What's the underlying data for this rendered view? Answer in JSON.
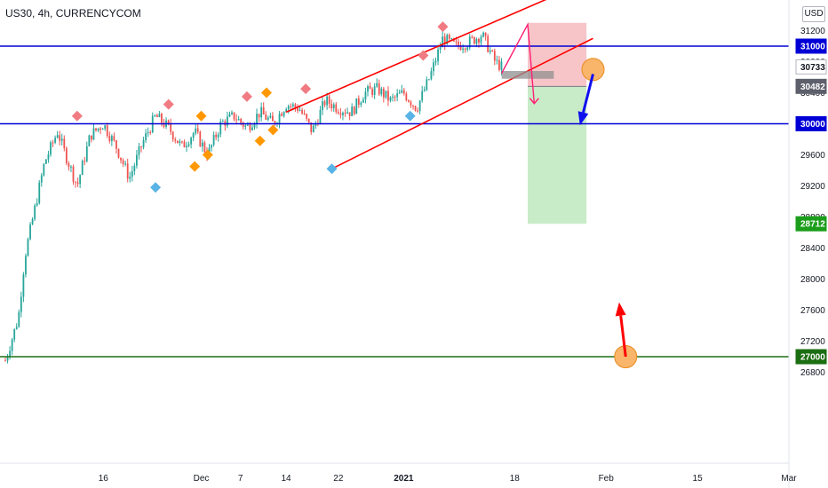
{
  "header": {
    "symbol": "US30, 4h, CURRENCYCOM",
    "currency": "USD"
  },
  "colors": {
    "up": "#26a69a",
    "down": "#ef5350",
    "resistance": "#0000d6",
    "support": "#1b6e12",
    "channel": "#ff0000",
    "forecast": "#ff1e74",
    "sl_zone": "#f7c5c8",
    "tp_zone": "#c8ebc8",
    "marker_red": "#f07b82",
    "marker_orange": "#ff9800",
    "marker_blue": "#5ab3e6",
    "circle": "#f9b56a",
    "circle_edge": "#e88b1e",
    "arrow_blue": "#1010ee",
    "arrow_red": "#ff0000"
  },
  "chart_data": {
    "type": "line",
    "title": "US30, 4h, CURRENCYCOM",
    "y_axis": {
      "ylim": [
        26600,
        31400
      ],
      "ticks": [
        26800,
        27200,
        27600,
        28000,
        28400,
        28800,
        29200,
        29600,
        30000,
        30400,
        30800,
        31200
      ],
      "position": "right"
    },
    "x_axis": {
      "tick_labels": [
        "16",
        "Dec",
        "7",
        "14",
        "22",
        "2021",
        "18",
        "Feb",
        "15",
        "Mar"
      ],
      "bold_labels": [
        "2021"
      ]
    },
    "price_series": {
      "name": "US30",
      "x": [
        "Nov 01",
        "Nov 03",
        "Nov 04",
        "Nov 05",
        "Nov 07",
        "Nov 09",
        "Nov 10",
        "Nov 12",
        "Nov 14",
        "Nov 16",
        "Nov 18",
        "Nov 20",
        "Nov 22",
        "Nov 24",
        "Nov 26",
        "Nov 28",
        "Nov 30",
        "Dec 02",
        "Dec 04",
        "Dec 06",
        "Dec 08",
        "Dec 10",
        "Dec 12",
        "Dec 14",
        "Dec 16",
        "Dec 18",
        "Dec 20",
        "Dec 22",
        "Dec 24",
        "Dec 26",
        "Dec 28",
        "Dec 30",
        "Jan 01",
        "Jan 03",
        "Jan 05",
        "Jan 07",
        "Jan 09",
        "Jan 11",
        "Jan 13",
        "Jan 15",
        "Jan 16"
      ],
      "values": [
        26950,
        27500,
        28300,
        28700,
        29500,
        29900,
        29650,
        29200,
        29850,
        30000,
        29700,
        29300,
        29750,
        30100,
        29950,
        29700,
        29900,
        29600,
        30000,
        30100,
        29950,
        30150,
        30000,
        30250,
        30200,
        29900,
        30300,
        30200,
        30150,
        30400,
        30450,
        30300,
        30400,
        30200,
        30600,
        31100,
        31000,
        31050,
        31150,
        30800,
        30733
      ]
    },
    "horizontal_levels": [
      {
        "value": 31000,
        "label": "31000",
        "color_key": "resistance"
      },
      {
        "value": 30000,
        "label": "30000",
        "color_key": "resistance"
      },
      {
        "value": 27000,
        "label": "27000",
        "color_key": "support"
      }
    ],
    "price_tags": [
      {
        "value": 30733,
        "label": "30733",
        "style": "current"
      },
      {
        "value": 30482,
        "label": "30482",
        "style": "entry"
      },
      {
        "value": 28712,
        "label": "28712",
        "style": "target"
      }
    ],
    "channel": {
      "upper": {
        "from": [
          "Dec 14",
          30150
        ],
        "to": [
          "Jan 31",
          31900
        ]
      },
      "lower": {
        "from": [
          "Dec 21",
          29420
        ],
        "to": [
          "Jan 30",
          31100
        ]
      }
    },
    "short_position": {
      "entry": 30482,
      "stop": 31300,
      "target": 28712,
      "x_start": "Jan 20",
      "x_end": "Jan 29"
    },
    "forecast_path": [
      [
        "Jan 16",
        30650
      ],
      [
        "Jan 20",
        31280
      ],
      [
        "Jan 21",
        30260
      ]
    ],
    "grey_box": {
      "x_start": "Jan 16",
      "x_end": "Jan 24",
      "y_low": 30580,
      "y_high": 30680
    },
    "markers": [
      {
        "x": "Nov 12",
        "y": 30100,
        "color_key": "marker_red"
      },
      {
        "x": "Nov 24",
        "y": 29180,
        "color_key": "marker_blue"
      },
      {
        "x": "Nov 26",
        "y": 30250,
        "color_key": "marker_red"
      },
      {
        "x": "Nov 30",
        "y": 29450,
        "color_key": "marker_orange"
      },
      {
        "x": "Dec 01",
        "y": 30100,
        "color_key": "marker_orange"
      },
      {
        "x": "Dec 02",
        "y": 29600,
        "color_key": "marker_orange"
      },
      {
        "x": "Dec 08",
        "y": 30350,
        "color_key": "marker_red"
      },
      {
        "x": "Dec 10",
        "y": 29780,
        "color_key": "marker_orange"
      },
      {
        "x": "Dec 11",
        "y": 30400,
        "color_key": "marker_orange"
      },
      {
        "x": "Dec 12",
        "y": 29920,
        "color_key": "marker_orange"
      },
      {
        "x": "Dec 17",
        "y": 30450,
        "color_key": "marker_red"
      },
      {
        "x": "Dec 21",
        "y": 29420,
        "color_key": "marker_blue"
      },
      {
        "x": "Jan 02",
        "y": 30100,
        "color_key": "marker_blue"
      },
      {
        "x": "Jan 04",
        "y": 30880,
        "color_key": "marker_red"
      },
      {
        "x": "Jan 07",
        "y": 31250,
        "color_key": "marker_red"
      }
    ],
    "annotations": [
      {
        "kind": "circle",
        "x": "Jan 30",
        "y": 30700,
        "color_key": "circle"
      },
      {
        "kind": "circle",
        "x": "Feb 04",
        "y": 27000,
        "color_key": "circle"
      },
      {
        "kind": "arrow",
        "from": [
          "Jan 30",
          30640
        ],
        "to": [
          "Jan 28",
          29980
        ],
        "color_key": "arrow_blue"
      },
      {
        "kind": "arrow",
        "from": [
          "Feb 04",
          27000
        ],
        "to": [
          "Feb 03",
          27700
        ],
        "color_key": "arrow_red"
      }
    ]
  }
}
